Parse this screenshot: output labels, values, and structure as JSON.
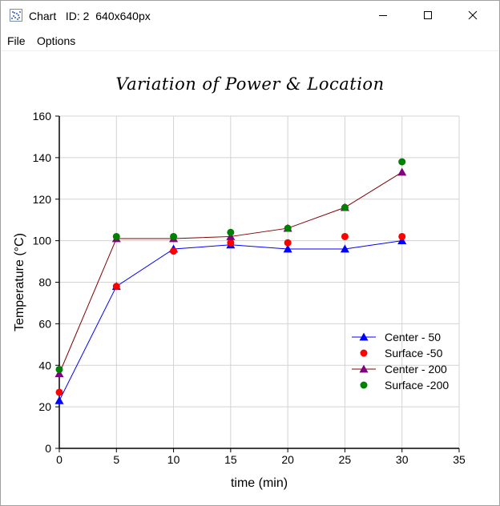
{
  "window": {
    "title": "Chart   ID: 2  640x640px",
    "icon": "scatter-chart-icon",
    "controls": [
      "minimize-icon",
      "maximize-icon",
      "close-icon"
    ]
  },
  "menu": {
    "items": [
      "File",
      "Options"
    ]
  },
  "chart_data": {
    "type": "line",
    "title": "Variation of Power & Location",
    "xlabel": "time (min)",
    "ylabel": "Temperature (°C)",
    "xlim": [
      0,
      35
    ],
    "ylim": [
      0,
      160
    ],
    "xticks": [
      0,
      5,
      10,
      15,
      20,
      25,
      30,
      35
    ],
    "yticks": [
      0,
      20,
      40,
      60,
      80,
      100,
      120,
      140,
      160
    ],
    "grid": true,
    "legend_position": "bottom-right",
    "x": [
      0,
      5,
      10,
      15,
      20,
      25,
      30
    ],
    "series": [
      {
        "name": "Center - 50",
        "values": [
          23,
          78,
          96,
          98,
          96,
          96,
          100
        ],
        "color": "#0000ff",
        "line": true,
        "marker": "triangle"
      },
      {
        "name": "Surface -50",
        "values": [
          27,
          78,
          95,
          99,
          99,
          102,
          102
        ],
        "color": "#ff0000",
        "line": false,
        "marker": "circle"
      },
      {
        "name": "Center - 200",
        "values": [
          36,
          101,
          101,
          102,
          106,
          116,
          133
        ],
        "color": "#800000",
        "marker_color": "#800080",
        "line": true,
        "marker": "triangle"
      },
      {
        "name": "Surface -200",
        "values": [
          38,
          102,
          102,
          104,
          106,
          116,
          138
        ],
        "color": "#008000",
        "line": false,
        "marker": "circle"
      }
    ]
  }
}
